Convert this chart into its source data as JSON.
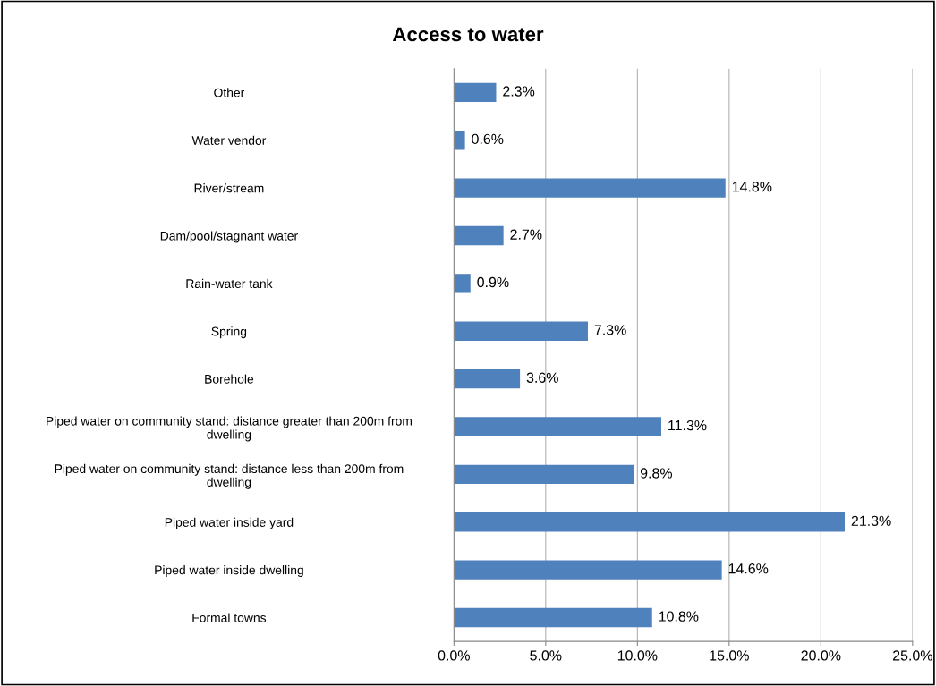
{
  "chart_data": {
    "type": "bar",
    "orientation": "horizontal",
    "title": "Access to water",
    "categories": [
      "Other",
      "Water vendor",
      "River/stream",
      "Dam/pool/stagnant water",
      "Rain-water tank",
      "Spring",
      "Borehole",
      "Piped water on community stand: distance greater than 200m from\ndwelling",
      "Piped water on community stand: distance less than 200m from\ndwelling",
      "Piped water inside yard",
      "Piped water inside dwelling",
      "Formal towns"
    ],
    "values": [
      2.3,
      0.6,
      14.8,
      2.7,
      0.9,
      7.3,
      3.6,
      11.3,
      9.8,
      21.3,
      14.6,
      10.8
    ],
    "value_labels": [
      "2.3%",
      "0.6%",
      "14.8%",
      "2.7%",
      "0.9%",
      "7.3%",
      "3.6%",
      "11.3%",
      "9.8%",
      "21.3%",
      "14.6%",
      "10.8%"
    ],
    "color": "#4f81bd",
    "xlim": [
      0,
      25
    ],
    "xticks": [
      {
        "value": 0,
        "label": "0.0%"
      },
      {
        "value": 5,
        "label": "5.0%"
      },
      {
        "value": 10,
        "label": "10.0%"
      },
      {
        "value": 15,
        "label": "15.0%"
      },
      {
        "value": 20,
        "label": "20.0%"
      },
      {
        "value": 25,
        "label": "25.0%"
      }
    ],
    "grid": "x"
  }
}
